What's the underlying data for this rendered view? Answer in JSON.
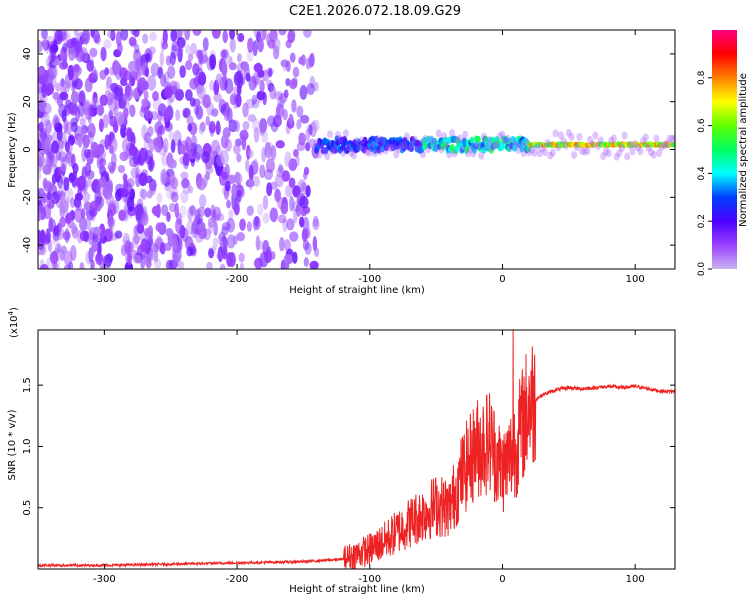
{
  "chart_data": [
    {
      "type": "heatmap",
      "title": "C2E1.2026.072.18.09.G29",
      "xlabel": "Height of straight line (km)",
      "ylabel": "Frequency (Hz)",
      "xlim": [
        -350,
        130
      ],
      "ylim": [
        -50,
        50
      ],
      "xticks": [
        -300,
        -200,
        -100,
        0,
        100
      ],
      "yticks": [
        -40,
        -20,
        0,
        20,
        40
      ],
      "colorbar": {
        "label": "Normalized spectral amplitude",
        "range": [
          0,
          1
        ],
        "ticks": [
          "0.0",
          "0.2",
          "0.4",
          "0.6",
          "0.8"
        ],
        "colors": [
          "#c8b4f0",
          "#9a40ff",
          "#4b00ff",
          "#0040ff",
          "#00ffff",
          "#00ff60",
          "#60ff00",
          "#ffff00",
          "#ff8000",
          "#ff0000",
          "#ff0080"
        ]
      },
      "regions": [
        {
          "name": "noise",
          "x_range": [
            -350,
            -140
          ],
          "y_range": [
            -50,
            50
          ],
          "amplitude": 0.12
        },
        {
          "name": "signal",
          "x_range": [
            -140,
            130
          ],
          "center_freq": 2,
          "peak_amplitude": 0.9
        }
      ]
    },
    {
      "type": "line",
      "xlabel": "Height of straight line (km)",
      "ylabel": "SNR (10 * v/v)",
      "yscale_label": "(x10",
      "yscale_exponent": "4",
      "xlim": [
        -350,
        130
      ],
      "ylim": [
        0,
        1.95
      ],
      "xticks": [
        -300,
        -200,
        -100,
        0,
        100
      ],
      "yticks": [
        "0.5",
        "1.0",
        "1.5"
      ],
      "series": [
        {
          "name": "SNR",
          "color": "#ee2222",
          "x": [
            -350,
            -300,
            -250,
            -200,
            -150,
            -120,
            -110,
            -100,
            -90,
            -80,
            -70,
            -60,
            -50,
            -40,
            -30,
            -20,
            -10,
            0,
            10,
            20,
            30,
            40,
            50,
            60,
            70,
            80,
            90,
            100,
            110,
            120,
            130
          ],
          "y": [
            0.03,
            0.03,
            0.04,
            0.05,
            0.06,
            0.08,
            0.12,
            0.16,
            0.22,
            0.3,
            0.38,
            0.45,
            0.52,
            0.5,
            0.78,
            0.98,
            1.05,
            0.8,
            1.0,
            1.35,
            1.42,
            1.46,
            1.48,
            1.47,
            1.48,
            1.49,
            1.48,
            1.49,
            1.47,
            1.45,
            1.45
          ]
        }
      ]
    }
  ]
}
